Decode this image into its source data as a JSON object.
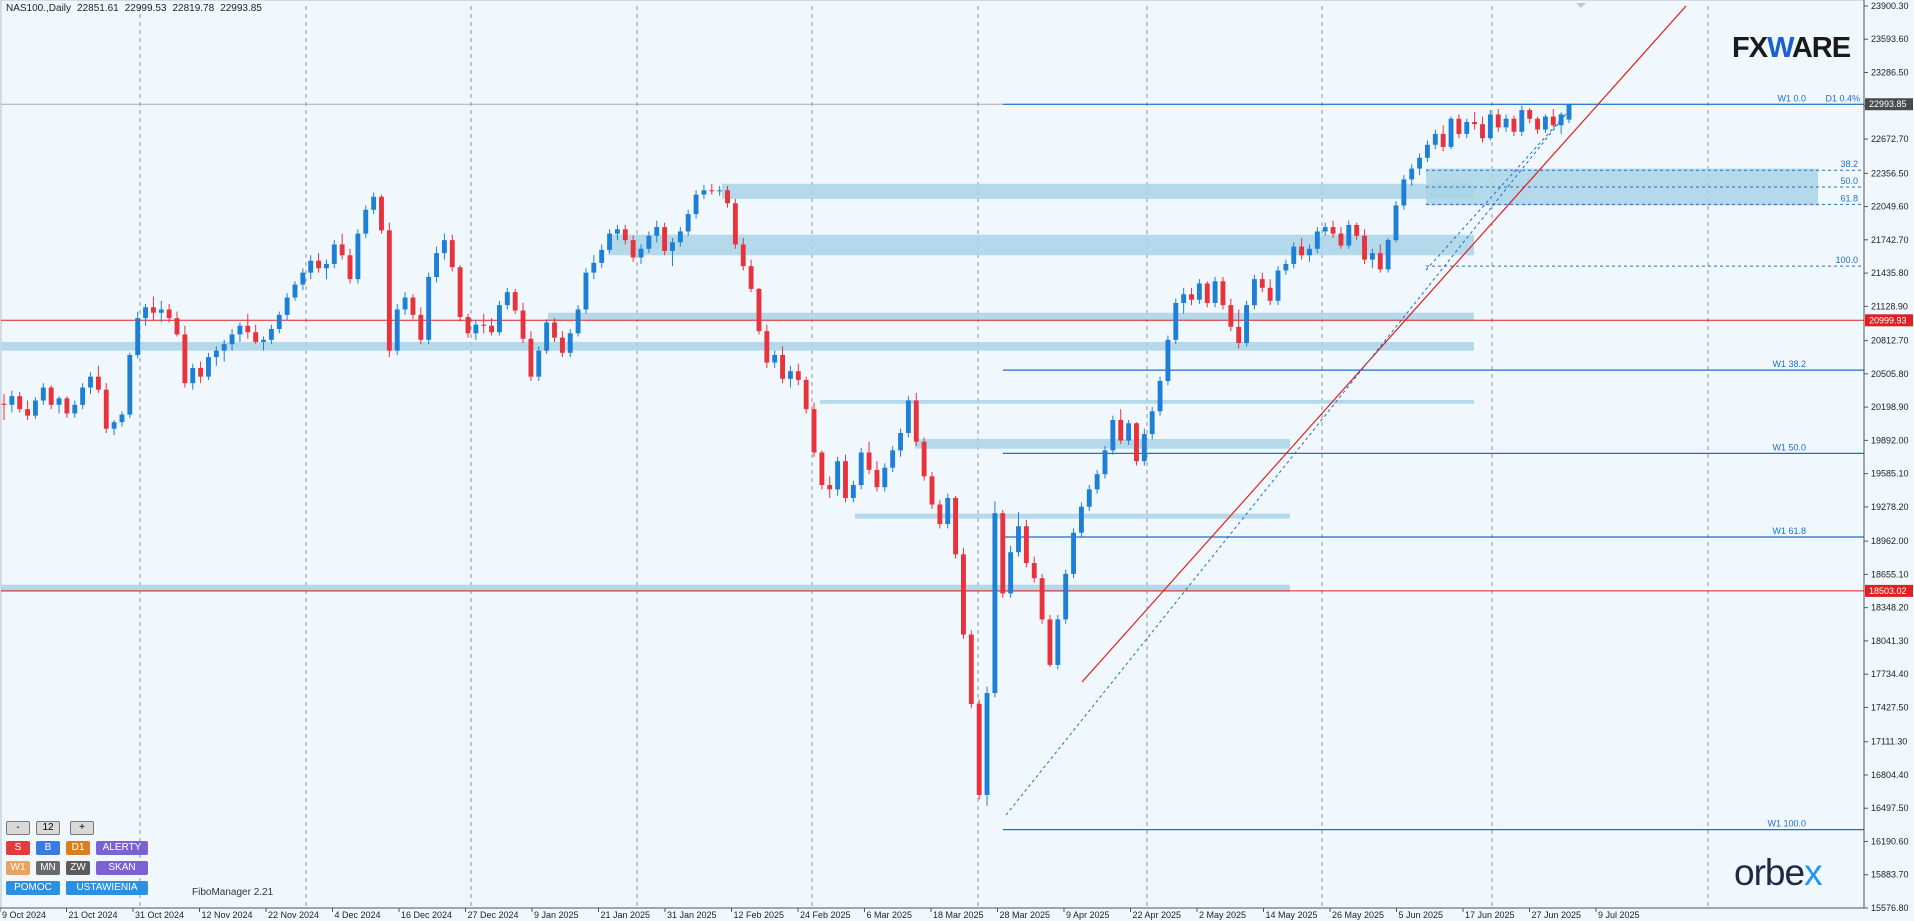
{
  "header": {
    "symbol": "NAS100.,Daily",
    "ohlc": [
      "22851.61",
      "22999.53",
      "22819.78",
      "22993.85"
    ]
  },
  "logos": {
    "fxware_a": "FX",
    "fxware_w": "W",
    "fxware_b": "ARE",
    "orbex_a": "orbe",
    "orbex_b": "x"
  },
  "footer": {
    "indicator_name": "FiboManager 2.21"
  },
  "controls": {
    "minus": "-",
    "value": "12",
    "plus": "+",
    "row2": [
      {
        "label": "S",
        "color": "#e03c3c"
      },
      {
        "label": "B",
        "color": "#3a7be0"
      },
      {
        "label": "D1",
        "color": "#d7801f"
      },
      {
        "label": "ALERTY",
        "color": "#7b61d1"
      }
    ],
    "row3": [
      {
        "label": "W1",
        "color": "#e8a261"
      },
      {
        "label": "MN",
        "color": "#6a6a6a"
      },
      {
        "label": "ZW",
        "color": "#5b5b5b"
      },
      {
        "label": "SKAN",
        "color": "#7b61d1"
      }
    ],
    "row4": [
      {
        "label": "POMOC",
        "color": "#2d8fe0"
      },
      {
        "label": "USTAWIENIA",
        "color": "#2d8fe0"
      }
    ]
  },
  "chart_data": {
    "type": "candlestick",
    "title": "NAS100.,Daily",
    "ylim": [
      15576.8,
      23900.3
    ],
    "y_ticks": [
      "23900.30",
      "23593.60",
      "23286.50",
      "22979.70",
      "22672.70",
      "22356.50",
      "22049.60",
      "21742.70",
      "21435.80",
      "21128.90",
      "20812.70",
      "20505.80",
      "20198.90",
      "19892.00",
      "19585.10",
      "19278.20",
      "18962.00",
      "18655.10",
      "18348.20",
      "18041.30",
      "17734.40",
      "17427.50",
      "17111.30",
      "16804.40",
      "16497.50",
      "16190.60",
      "15883.70",
      "15576.80"
    ],
    "x_labels": [
      "9 Oct 2024",
      "21 Oct 2024",
      "31 Oct 2024",
      "12 Nov 2024",
      "22 Nov 2024",
      "4 Dec 2024",
      "16 Dec 2024",
      "27 Dec 2024",
      "9 Jan 2025",
      "21 Jan 2025",
      "31 Jan 2025",
      "12 Feb 2025",
      "24 Feb 2025",
      "6 Mar 2025",
      "18 Mar 2025",
      "28 Mar 2025",
      "9 Apr 2025",
      "22 Apr 2025",
      "2 May 2025",
      "14 May 2025",
      "26 May 2025",
      "5 Jun 2025",
      "17 Jun 2025",
      "27 Jun 2025",
      "9 Jul 2025"
    ],
    "current_price": {
      "value": 22993.85,
      "label": "22993.85"
    },
    "price_labels": [
      {
        "value": 20999.93,
        "label": "20999.93",
        "color": "#e02020"
      },
      {
        "value": 18503.02,
        "label": "18503.02",
        "color": "#e02020"
      }
    ],
    "fib_w1": [
      {
        "label": "W1 0.0",
        "value": 22993
      },
      {
        "label": "W1 38.2",
        "value": 20540
      },
      {
        "label": "W1 50.0",
        "value": 19772
      },
      {
        "label": "W1 61.8",
        "value": 19000
      },
      {
        "label": "W1 100.0",
        "value": 16300
      }
    ],
    "fib_d1": {
      "label": "D1 0.4%",
      "levels": [
        {
          "label": "38.2",
          "value": 22385
        },
        {
          "label": "50.0",
          "value": 22230
        },
        {
          "label": "61.8",
          "value": 22070
        },
        {
          "label": "100.0",
          "value": 21500
        }
      ]
    },
    "zones": [
      {
        "low": 22120,
        "high": 22260
      },
      {
        "low": 21600,
        "high": 21790
      },
      {
        "low": 21000,
        "high": 21070
      },
      {
        "low": 20720,
        "high": 20800
      },
      {
        "low": 20230,
        "high": 20265
      },
      {
        "low": 19815,
        "high": 19905
      },
      {
        "low": 19170,
        "high": 19215
      },
      {
        "low": 18495,
        "high": 18560
      }
    ],
    "candles": [
      [
        20230,
        20320,
        20080,
        20220
      ],
      [
        20220,
        20350,
        20150,
        20300
      ],
      [
        20300,
        20340,
        20150,
        20180
      ],
      [
        20180,
        20260,
        20080,
        20120
      ],
      [
        20120,
        20290,
        20090,
        20260
      ],
      [
        20260,
        20420,
        20220,
        20380
      ],
      [
        20380,
        20400,
        20180,
        20220
      ],
      [
        20220,
        20300,
        20140,
        20280
      ],
      [
        20280,
        20300,
        20100,
        20140
      ],
      [
        20140,
        20260,
        20100,
        20220
      ],
      [
        20220,
        20420,
        20180,
        20380
      ],
      [
        20380,
        20520,
        20320,
        20480
      ],
      [
        20480,
        20580,
        20330,
        20360
      ],
      [
        20360,
        20420,
        19960,
        20000
      ],
      [
        20000,
        20080,
        19940,
        20060
      ],
      [
        20060,
        20160,
        20020,
        20130
      ],
      [
        20130,
        20700,
        20100,
        20680
      ],
      [
        20680,
        21080,
        20650,
        21020
      ],
      [
        21020,
        21150,
        20950,
        21120
      ],
      [
        21120,
        21220,
        21000,
        21070
      ],
      [
        21070,
        21180,
        20980,
        21100
      ],
      [
        21100,
        21150,
        20980,
        21020
      ],
      [
        21020,
        21080,
        20850,
        20870
      ],
      [
        20870,
        20950,
        20380,
        20420
      ],
      [
        20420,
        20600,
        20360,
        20560
      ],
      [
        20560,
        20620,
        20420,
        20480
      ],
      [
        20480,
        20700,
        20450,
        20660
      ],
      [
        20660,
        20760,
        20580,
        20720
      ],
      [
        20720,
        20820,
        20620,
        20780
      ],
      [
        20780,
        20920,
        20720,
        20870
      ],
      [
        20870,
        20980,
        20800,
        20950
      ],
      [
        20950,
        21060,
        20830,
        20890
      ],
      [
        20890,
        20960,
        20780,
        20800
      ],
      [
        20800,
        20850,
        20720,
        20820
      ],
      [
        20820,
        20960,
        20780,
        20920
      ],
      [
        20920,
        21080,
        20880,
        21050
      ],
      [
        21050,
        21250,
        21000,
        21210
      ],
      [
        21210,
        21360,
        21180,
        21330
      ],
      [
        21330,
        21480,
        21280,
        21440
      ],
      [
        21440,
        21600,
        21380,
        21550
      ],
      [
        21550,
        21620,
        21440,
        21480
      ],
      [
        21480,
        21560,
        21380,
        21520
      ],
      [
        21520,
        21740,
        21480,
        21700
      ],
      [
        21700,
        21800,
        21560,
        21600
      ],
      [
        21600,
        21660,
        21340,
        21380
      ],
      [
        21380,
        21840,
        21340,
        21800
      ],
      [
        21800,
        22060,
        21760,
        22020
      ],
      [
        22020,
        22180,
        21980,
        22140
      ],
      [
        22140,
        22160,
        21800,
        21830
      ],
      [
        21830,
        21900,
        20660,
        20720
      ],
      [
        20720,
        21150,
        20680,
        21100
      ],
      [
        21100,
        21260,
        21050,
        21210
      ],
      [
        21210,
        21240,
        21010,
        21050
      ],
      [
        21050,
        21120,
        20780,
        20820
      ],
      [
        20820,
        21440,
        20780,
        21400
      ],
      [
        21400,
        21680,
        21350,
        21620
      ],
      [
        21620,
        21800,
        21560,
        21740
      ],
      [
        21740,
        21790,
        21450,
        21490
      ],
      [
        21490,
        21510,
        20990,
        21030
      ],
      [
        21030,
        21060,
        20840,
        20880
      ],
      [
        20880,
        21000,
        20820,
        20960
      ],
      [
        20960,
        21060,
        20880,
        20950
      ],
      [
        20950,
        21020,
        20860,
        20890
      ],
      [
        20890,
        21180,
        20860,
        21140
      ],
      [
        21140,
        21300,
        21100,
        21260
      ],
      [
        21260,
        21290,
        21060,
        21090
      ],
      [
        21090,
        21160,
        20790,
        20830
      ],
      [
        20830,
        20900,
        20440,
        20480
      ],
      [
        20480,
        20760,
        20440,
        20720
      ],
      [
        20720,
        21010,
        20690,
        20980
      ],
      [
        20980,
        21020,
        20800,
        20840
      ],
      [
        20840,
        20900,
        20660,
        20700
      ],
      [
        20700,
        20920,
        20660,
        20880
      ],
      [
        20880,
        21140,
        20850,
        21100
      ],
      [
        21100,
        21480,
        21060,
        21440
      ],
      [
        21440,
        21600,
        21380,
        21530
      ],
      [
        21530,
        21700,
        21480,
        21650
      ],
      [
        21650,
        21840,
        21620,
        21800
      ],
      [
        21800,
        21880,
        21740,
        21840
      ],
      [
        21840,
        21880,
        21700,
        21740
      ],
      [
        21740,
        21780,
        21540,
        21580
      ],
      [
        21580,
        21700,
        21520,
        21660
      ],
      [
        21660,
        21820,
        21620,
        21780
      ],
      [
        21780,
        21920,
        21720,
        21860
      ],
      [
        21860,
        21900,
        21600,
        21640
      ],
      [
        21640,
        21760,
        21500,
        21720
      ],
      [
        21720,
        21860,
        21680,
        21820
      ],
      [
        21820,
        22020,
        21780,
        21980
      ],
      [
        21980,
        22200,
        21940,
        22160
      ],
      [
        22160,
        22250,
        22120,
        22200
      ],
      [
        22200,
        22260,
        22160,
        22190
      ],
      [
        22190,
        22240,
        22150,
        22200
      ],
      [
        22200,
        22240,
        22040,
        22080
      ],
      [
        22080,
        22120,
        21660,
        21700
      ],
      [
        21700,
        21760,
        21460,
        21500
      ],
      [
        21500,
        21560,
        21260,
        21290
      ],
      [
        21290,
        21300,
        20870,
        20900
      ],
      [
        20900,
        20960,
        20560,
        20610
      ],
      [
        20610,
        20720,
        20560,
        20680
      ],
      [
        20680,
        20760,
        20420,
        20460
      ],
      [
        20460,
        20580,
        20380,
        20530
      ],
      [
        20530,
        20600,
        20400,
        20450
      ],
      [
        20450,
        20480,
        20140,
        20180
      ],
      [
        20180,
        20240,
        19740,
        19780
      ],
      [
        19780,
        19800,
        19440,
        19480
      ],
      [
        19480,
        19560,
        19360,
        19440
      ],
      [
        19440,
        19740,
        19380,
        19700
      ],
      [
        19700,
        19760,
        19320,
        19360
      ],
      [
        19360,
        19520,
        19320,
        19480
      ],
      [
        19480,
        19820,
        19440,
        19780
      ],
      [
        19780,
        19880,
        19580,
        19620
      ],
      [
        19620,
        19700,
        19420,
        19460
      ],
      [
        19460,
        19680,
        19420,
        19640
      ],
      [
        19640,
        19840,
        19600,
        19800
      ],
      [
        19800,
        20000,
        19740,
        19960
      ],
      [
        19960,
        20300,
        19920,
        20260
      ],
      [
        20260,
        20330,
        19840,
        19880
      ],
      [
        19880,
        19920,
        19520,
        19560
      ],
      [
        19560,
        19600,
        19260,
        19300
      ],
      [
        19300,
        19340,
        19080,
        19120
      ],
      [
        19120,
        19400,
        19080,
        19360
      ],
      [
        19360,
        19380,
        18800,
        18840
      ],
      [
        18840,
        18900,
        18060,
        18100
      ],
      [
        18100,
        18140,
        17420,
        17460
      ],
      [
        17460,
        17500,
        16580,
        16620
      ],
      [
        16620,
        17620,
        16520,
        17560
      ],
      [
        17560,
        19330,
        17520,
        19220
      ],
      [
        19220,
        19250,
        18440,
        18480
      ],
      [
        18480,
        18920,
        18440,
        18860
      ],
      [
        18860,
        19230,
        18820,
        19100
      ],
      [
        19100,
        19160,
        18720,
        18760
      ],
      [
        18760,
        18820,
        18580,
        18620
      ],
      [
        18620,
        18660,
        18200,
        18240
      ],
      [
        18240,
        18280,
        17800,
        17820
      ],
      [
        17820,
        18280,
        17780,
        18240
      ],
      [
        18240,
        18700,
        18200,
        18660
      ],
      [
        18660,
        19080,
        18620,
        19040
      ],
      [
        19040,
        19320,
        19000,
        19280
      ],
      [
        19280,
        19480,
        19240,
        19440
      ],
      [
        19440,
        19620,
        19400,
        19580
      ],
      [
        19580,
        19840,
        19540,
        19800
      ],
      [
        19800,
        20120,
        19760,
        20080
      ],
      [
        20080,
        20180,
        19860,
        19890
      ],
      [
        19890,
        20080,
        19850,
        20050
      ],
      [
        20050,
        20060,
        19660,
        19700
      ],
      [
        19700,
        20000,
        19660,
        19950
      ],
      [
        19950,
        20200,
        19900,
        20160
      ],
      [
        20160,
        20480,
        20120,
        20440
      ],
      [
        20440,
        20860,
        20400,
        20820
      ],
      [
        20820,
        21200,
        20780,
        21160
      ],
      [
        21160,
        21300,
        21060,
        21240
      ],
      [
        21240,
        21300,
        21140,
        21190
      ],
      [
        21190,
        21380,
        21150,
        21340
      ],
      [
        21340,
        21360,
        21120,
        21160
      ],
      [
        21160,
        21400,
        21120,
        21360
      ],
      [
        21360,
        21400,
        21100,
        21140
      ],
      [
        21140,
        21200,
        20900,
        20940
      ],
      [
        20940,
        21100,
        20740,
        20790
      ],
      [
        20790,
        21180,
        20760,
        21140
      ],
      [
        21140,
        21420,
        21100,
        21380
      ],
      [
        21380,
        21440,
        21260,
        21300
      ],
      [
        21300,
        21380,
        21140,
        21180
      ],
      [
        21180,
        21500,
        21140,
        21460
      ],
      [
        21460,
        21560,
        21420,
        21520
      ],
      [
        21520,
        21720,
        21480,
        21680
      ],
      [
        21680,
        21760,
        21560,
        21600
      ],
      [
        21600,
        21700,
        21540,
        21660
      ],
      [
        21660,
        21860,
        21620,
        21820
      ],
      [
        21820,
        21900,
        21780,
        21860
      ],
      [
        21860,
        21920,
        21760,
        21800
      ],
      [
        21800,
        21860,
        21660,
        21690
      ],
      [
        21690,
        21920,
        21660,
        21880
      ],
      [
        21880,
        21900,
        21740,
        21780
      ],
      [
        21780,
        21840,
        21520,
        21560
      ],
      [
        21560,
        21660,
        21480,
        21620
      ],
      [
        21620,
        21700,
        21440,
        21470
      ],
      [
        21470,
        21760,
        21440,
        21740
      ],
      [
        21740,
        22100,
        21720,
        22060
      ],
      [
        22060,
        22340,
        22020,
        22300
      ],
      [
        22300,
        22440,
        22240,
        22400
      ],
      [
        22400,
        22540,
        22340,
        22500
      ],
      [
        22500,
        22660,
        22460,
        22620
      ],
      [
        22620,
        22760,
        22580,
        22720
      ],
      [
        22720,
        22800,
        22560,
        22600
      ],
      [
        22600,
        22880,
        22580,
        22860
      ],
      [
        22860,
        22900,
        22680,
        22720
      ],
      [
        22720,
        22860,
        22680,
        22830
      ],
      [
        22830,
        22920,
        22760,
        22810
      ],
      [
        22810,
        22880,
        22640,
        22680
      ],
      [
        22680,
        22940,
        22660,
        22900
      ],
      [
        22900,
        22950,
        22740,
        22780
      ],
      [
        22780,
        22900,
        22740,
        22860
      ],
      [
        22860,
        22890,
        22700,
        22740
      ],
      [
        22740,
        22980,
        22700,
        22940
      ],
      [
        22940,
        22960,
        22820,
        22860
      ],
      [
        22860,
        22880,
        22720,
        22760
      ],
      [
        22760,
        22900,
        22730,
        22880
      ],
      [
        22880,
        22950,
        22780,
        22800
      ],
      [
        22800,
        22920,
        22720,
        22900
      ],
      [
        22851.61,
        22999.53,
        22819.78,
        22993.85
      ]
    ]
  }
}
